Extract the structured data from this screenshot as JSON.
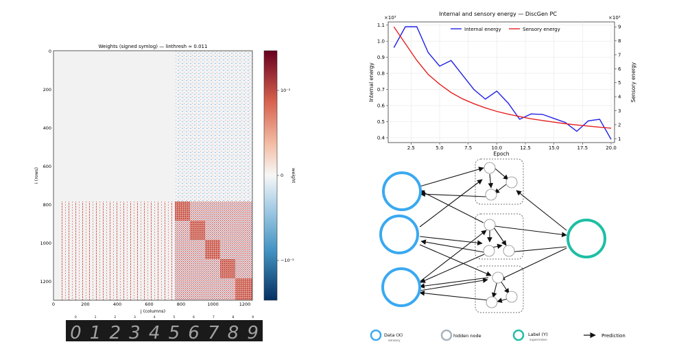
{
  "heatmap": {
    "title": "Weights (signed symlog) — linthresh ≈ 0.011",
    "xlabel": "j (columns)",
    "ylabel": "i (rows)",
    "x_ticks": [
      "0",
      "200",
      "400",
      "600",
      "800",
      "1000",
      "1200"
    ],
    "y_ticks": [
      "0",
      "200",
      "400",
      "600",
      "800",
      "1000",
      "1200"
    ],
    "colorbar_label": "weight",
    "colorbar_ticks": [
      "10⁻²",
      "0",
      "−10⁻²"
    ],
    "colors": {
      "positive": "#b2182b",
      "negative": "#2166ac",
      "zero": "#f2f2f2"
    }
  },
  "digits": {
    "labels": [
      "0",
      "1",
      "2",
      "3",
      "4",
      "5",
      "6",
      "7",
      "8",
      "9"
    ],
    "glyphs": [
      "0",
      "1",
      "2",
      "3",
      "4",
      "5",
      "6",
      "7",
      "8",
      "9"
    ]
  },
  "energy_chart": {
    "title": "Internal and sensory energy — DiscGen PC",
    "left_multiplier": "×10³",
    "right_multiplier": "×10³"
  },
  "chart_data": {
    "type": "line",
    "title": "Internal and sensory energy — DiscGen PC",
    "xlabel": "Epoch",
    "ylabel": "Internal energy",
    "y2label": "Sensory energy",
    "xlim": [
      0.5,
      20.3
    ],
    "ylim": [
      0.37,
      1.12
    ],
    "y2lim": [
      0.72,
      9.35
    ],
    "x_ticks": [
      "2.5",
      "5.0",
      "7.5",
      "10.0",
      "12.5",
      "15.0",
      "17.5",
      "20.0"
    ],
    "y_ticks": [
      "0.4",
      "0.5",
      "0.6",
      "0.7",
      "0.8",
      "0.9",
      "1.0",
      "1.1"
    ],
    "y2_ticks": [
      "1",
      "2",
      "3",
      "4",
      "5",
      "6",
      "7",
      "8",
      "9"
    ],
    "legend_position": "top",
    "grid": true,
    "x": [
      1,
      2,
      3,
      4,
      5,
      6,
      7,
      8,
      9,
      10,
      11,
      12,
      13,
      14,
      15,
      16,
      17,
      18,
      19,
      20
    ],
    "series": [
      {
        "name": "Internal energy",
        "axis": "left",
        "color": "#1f1fe6",
        "values": [
          0.96,
          1.09,
          1.09,
          0.93,
          0.845,
          0.88,
          0.79,
          0.7,
          0.64,
          0.69,
          0.615,
          0.515,
          0.548,
          0.545,
          0.52,
          0.495,
          0.44,
          0.505,
          0.515,
          0.39
        ]
      },
      {
        "name": "Sensory energy",
        "axis": "right",
        "color": "#e61f1f",
        "values": [
          9.0,
          7.8,
          6.6,
          5.6,
          4.9,
          4.3,
          3.85,
          3.5,
          3.2,
          2.95,
          2.75,
          2.58,
          2.42,
          2.3,
          2.18,
          2.07,
          1.98,
          1.9,
          1.82,
          1.75
        ]
      }
    ]
  },
  "diagram": {
    "legend": [
      {
        "label": "Data (X)",
        "sub": "sensory",
        "color": "#3aa9f0"
      },
      {
        "label": "hidden node",
        "sub": "",
        "color": "#a8b3bd"
      },
      {
        "label": "Label (Y)",
        "sub": "supervision",
        "color": "#1ebea5"
      },
      {
        "label": "Prediction",
        "sub": ""
      }
    ]
  }
}
